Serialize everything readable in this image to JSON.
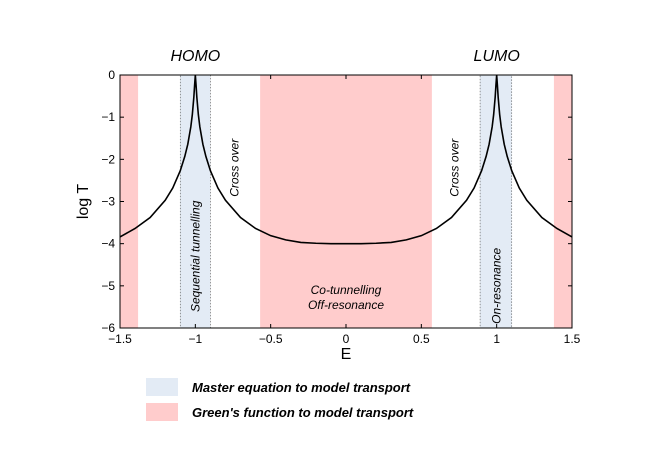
{
  "chart_data": {
    "type": "line",
    "xlabel": "E",
    "ylabel": "log T",
    "xlim": [
      -1.5,
      1.5
    ],
    "ylim": [
      -6,
      0
    ],
    "xticks": [
      -1.5,
      -1,
      -0.5,
      0,
      0.5,
      1,
      1.5
    ],
    "xtick_labels": [
      "−1.5",
      "−1",
      "−0.5",
      "0",
      "0.5",
      "1",
      "1.5"
    ],
    "yticks": [
      0,
      -1,
      -2,
      -3,
      -4,
      -5,
      -6
    ],
    "ytick_labels": [
      "0",
      "−1",
      "−2",
      "−3",
      "−4",
      "−5",
      "−6"
    ],
    "series": [
      {
        "name": "transmission",
        "x": [
          -1.5,
          -1.4,
          -1.3,
          -1.2,
          -1.15,
          -1.1,
          -1.07,
          -1.05,
          -1.03,
          -1.02,
          -1.01,
          -1.005,
          -1.0,
          -0.995,
          -0.99,
          -0.98,
          -0.97,
          -0.95,
          -0.93,
          -0.9,
          -0.85,
          -0.8,
          -0.7,
          -0.6,
          -0.5,
          -0.4,
          -0.3,
          -0.2,
          -0.1,
          0,
          0.1,
          0.2,
          0.3,
          0.4,
          0.5,
          0.6,
          0.7,
          0.8,
          0.85,
          0.9,
          0.93,
          0.95,
          0.97,
          0.98,
          0.99,
          0.995,
          1.0,
          1.005,
          1.01,
          1.02,
          1.03,
          1.05,
          1.07,
          1.1,
          1.15,
          1.2,
          1.3,
          1.4,
          1.5
        ],
        "y": [
          -3.84,
          -3.64,
          -3.38,
          -2.97,
          -2.68,
          -2.27,
          -1.93,
          -1.64,
          -1.23,
          -0.94,
          -0.53,
          -0.25,
          0.0,
          -0.25,
          -0.53,
          -0.94,
          -1.23,
          -1.64,
          -1.93,
          -2.27,
          -2.68,
          -2.97,
          -3.38,
          -3.64,
          -3.81,
          -3.91,
          -3.97,
          -3.99,
          -4.0,
          -4.0,
          -4.0,
          -3.99,
          -3.97,
          -3.91,
          -3.81,
          -3.64,
          -3.38,
          -2.97,
          -2.68,
          -2.27,
          -1.93,
          -1.64,
          -1.23,
          -0.94,
          -0.53,
          -0.25,
          0.0,
          -0.25,
          -0.53,
          -0.94,
          -1.23,
          -1.64,
          -1.93,
          -2.27,
          -2.68,
          -2.97,
          -3.38,
          -3.64,
          -3.84
        ],
        "color": "#000000"
      }
    ],
    "bands": [
      {
        "kind": "green",
        "x0": -1.5,
        "x1": -1.38
      },
      {
        "kind": "master",
        "x0": -1.1,
        "x1": -0.9
      },
      {
        "kind": "green",
        "x0": -0.57,
        "x1": 0.57
      },
      {
        "kind": "master",
        "x0": 0.89,
        "x1": 1.1
      },
      {
        "kind": "green",
        "x0": 1.38,
        "x1": 1.5
      }
    ],
    "peak_labels": [
      {
        "text": "HOMO",
        "x": -1.0
      },
      {
        "text": "LUMO",
        "x": 1.0
      }
    ],
    "region_labels": [
      {
        "text": "Sequential tunnelling",
        "x": -1.0,
        "y": -4.3,
        "rotate": true
      },
      {
        "text": "Cross over",
        "x": -0.74,
        "y": -2.2,
        "rotate": true
      },
      {
        "text": "Cross over",
        "x": 0.72,
        "y": -2.2,
        "rotate": true
      },
      {
        "text": "On-resonance",
        "x": 1.0,
        "y": -5.0,
        "rotate": true
      },
      {
        "text": "Co-tunnelling",
        "x": 0.0,
        "y": -5.1,
        "rotate": false
      },
      {
        "text": "Off-resonance",
        "x": 0.0,
        "y": -5.45,
        "rotate": false
      }
    ],
    "colors": {
      "master": "#e3ebf5",
      "green": "#ffcccc",
      "line": "#000000"
    },
    "legend": [
      {
        "label": "Master equation to model transport",
        "kind": "master"
      },
      {
        "label": "Green's function to model transport",
        "kind": "green"
      }
    ]
  }
}
